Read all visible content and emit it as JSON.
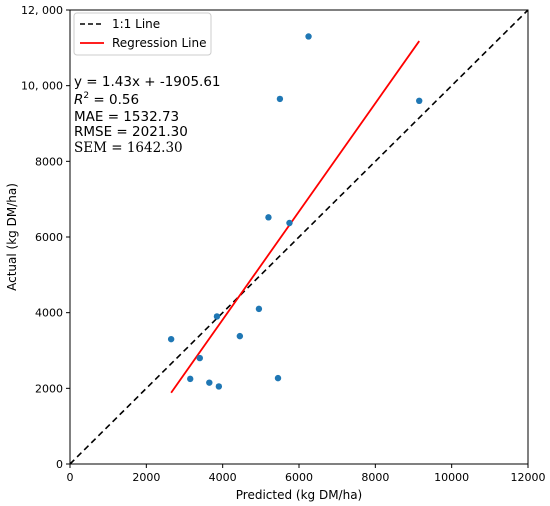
{
  "chart_data": {
    "type": "scatter",
    "xlabel": "Predicted (kg DM/ha)",
    "ylabel": "Actual (kg DM/ha)",
    "xlim": [
      0,
      12000
    ],
    "ylim": [
      0,
      12000
    ],
    "x_ticks": [
      0,
      2000,
      4000,
      6000,
      8000,
      10000,
      12000
    ],
    "x_tick_labels": [
      "0",
      "2000",
      "4000",
      "6000",
      "8000",
      "10000",
      "12000"
    ],
    "y_ticks": [
      0,
      2000,
      4000,
      6000,
      8000,
      10000,
      12000
    ],
    "y_tick_labels": [
      "0",
      "2000",
      "4000",
      "6000",
      "8000",
      "10, 000",
      "12, 000"
    ],
    "grid": false,
    "legend_position": "top-left",
    "points": {
      "color": "#1f77b4",
      "x": [
        2650,
        3150,
        3400,
        3650,
        3850,
        3900,
        4450,
        4950,
        5200,
        5450,
        5500,
        5750,
        6250,
        9150
      ],
      "y": [
        3300,
        2250,
        2800,
        2150,
        3900,
        2050,
        3380,
        4100,
        6520,
        2270,
        9650,
        6370,
        11300,
        9600
      ]
    },
    "series": [
      {
        "name": "1:1 Line",
        "color": "#000000",
        "style": "dashed",
        "x": [
          0,
          12000
        ],
        "y": [
          0,
          12000
        ]
      },
      {
        "name": "Regression Line",
        "color": "#ff0000",
        "style": "solid",
        "x": [
          2650,
          9150
        ],
        "y": [
          1884,
          11179
        ]
      }
    ],
    "annotations": {
      "equation": "y = 1.43x + -1905.61",
      "r2_symbol": "R",
      "r2_sup": "2",
      "r2_value": " = 0.56",
      "mae": "MAE = 1532.73",
      "rmse": "RMSE = 2021.30",
      "sem": "SEM = 1642.30"
    }
  }
}
